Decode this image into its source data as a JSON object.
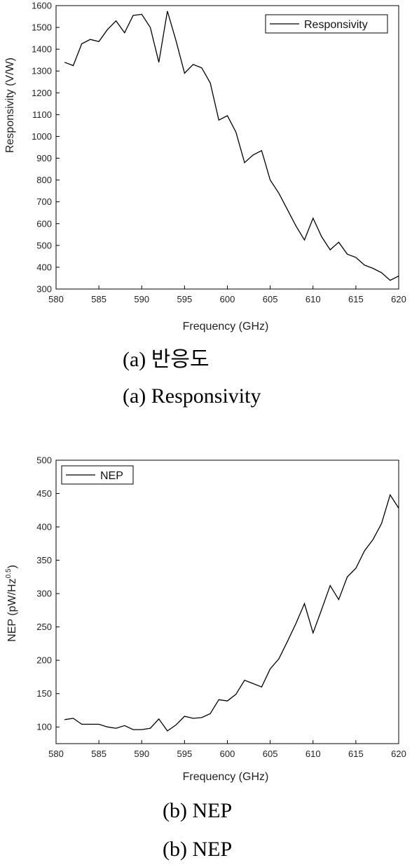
{
  "chart_data": [
    {
      "type": "line",
      "xlabel": "Frequency (GHz)",
      "ylabel": "Responsivity (V/W)",
      "xlim": [
        580,
        620
      ],
      "ylim": [
        300,
        1600
      ],
      "xticks": [
        580,
        585,
        590,
        595,
        600,
        605,
        610,
        615,
        620
      ],
      "yticks": [
        300,
        400,
        500,
        600,
        700,
        800,
        900,
        1000,
        1100,
        1200,
        1300,
        1400,
        1500,
        1600
      ],
      "legend_position": "top-right",
      "grid": false,
      "series": [
        {
          "name": "Responsivity",
          "x": [
            581,
            582,
            583,
            584,
            585,
            586,
            587,
            588,
            589,
            590,
            591,
            592,
            593,
            594,
            595,
            596,
            597,
            598,
            599,
            600,
            601,
            602,
            603,
            604,
            605,
            606,
            607,
            608,
            609,
            610,
            611,
            612,
            613,
            614,
            615,
            616,
            617,
            618,
            619,
            620
          ],
          "y": [
            1340,
            1325,
            1425,
            1445,
            1435,
            1490,
            1530,
            1475,
            1555,
            1560,
            1500,
            1340,
            1575,
            1440,
            1290,
            1330,
            1315,
            1245,
            1075,
            1095,
            1020,
            880,
            915,
            935,
            800,
            740,
            665,
            590,
            525,
            625,
            540,
            480,
            515,
            460,
            445,
            410,
            395,
            375,
            340,
            360
          ]
        }
      ]
    },
    {
      "type": "line",
      "xlabel": "Frequency (GHz)",
      "ylabel_main": "NEP (pW/Hz",
      "ylabel_sup": "0.5",
      "ylabel_end": ")",
      "xlim": [
        580,
        620
      ],
      "ylim": [
        75,
        500
      ],
      "xticks": [
        580,
        585,
        590,
        595,
        600,
        605,
        610,
        615,
        620
      ],
      "yticks": [
        100,
        150,
        200,
        250,
        300,
        350,
        400,
        450,
        500
      ],
      "legend_position": "top-left",
      "grid": false,
      "series": [
        {
          "name": "NEP",
          "x": [
            581,
            582,
            583,
            584,
            585,
            586,
            587,
            588,
            589,
            590,
            591,
            592,
            593,
            594,
            595,
            596,
            597,
            598,
            599,
            600,
            601,
            602,
            603,
            604,
            605,
            606,
            607,
            608,
            609,
            610,
            611,
            612,
            613,
            614,
            615,
            616,
            617,
            618,
            619,
            620
          ],
          "y": [
            111,
            113,
            104,
            104,
            104,
            100,
            98,
            102,
            96,
            96,
            98,
            112,
            94,
            103,
            116,
            113,
            114,
            120,
            141,
            139,
            149,
            170,
            165,
            160,
            187,
            202,
            228,
            255,
            285,
            241,
            276,
            312,
            291,
            325,
            338,
            364,
            381,
            405,
            448,
            428
          ]
        }
      ]
    }
  ],
  "captions": {
    "a_korean": "(a)  반응도",
    "a_english": "(a)  Responsivity",
    "b_first": "(b)  NEP",
    "b_second": "(b)  NEP"
  }
}
